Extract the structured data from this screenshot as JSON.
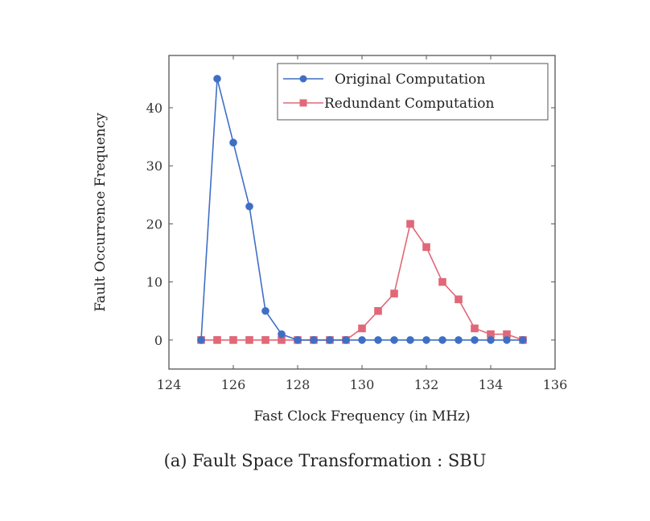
{
  "caption": "(a) Fault Space Transformation : SBU",
  "chart_data": {
    "type": "line",
    "xlabel": "Fast Clock Frequency (in MHz)",
    "ylabel": "Fault Occurrence Frequency",
    "xlim": [
      124,
      136
    ],
    "ylim": [
      -5,
      49
    ],
    "xticks": [
      124,
      126,
      128,
      130,
      132,
      134,
      136
    ],
    "yticks": [
      0,
      10,
      20,
      30,
      40
    ],
    "grid": false,
    "legend": "top-right",
    "series": [
      {
        "name": "Original Computation",
        "color": "#3f6fc4",
        "marker": "circle",
        "x": [
          125,
          125.5,
          126,
          126.5,
          127,
          127.5,
          128,
          128.5,
          129,
          129.5,
          130,
          130.5,
          131,
          131.5,
          132,
          132.5,
          133,
          133.5,
          134,
          134.5,
          135
        ],
        "y": [
          0,
          45,
          34,
          23,
          5,
          1,
          0,
          0,
          0,
          0,
          0,
          0,
          0,
          0,
          0,
          0,
          0,
          0,
          0,
          0,
          0
        ]
      },
      {
        "name": "Redundant Computation",
        "color": "#e06878",
        "marker": "square",
        "x": [
          125,
          125.5,
          126,
          126.5,
          127,
          127.5,
          128,
          128.5,
          129,
          129.5,
          130,
          130.5,
          131,
          131.5,
          132,
          132.5,
          133,
          133.5,
          134,
          134.5,
          135
        ],
        "y": [
          0,
          0,
          0,
          0,
          0,
          0,
          0,
          0,
          0,
          0,
          2,
          5,
          8,
          20,
          16,
          10,
          7,
          2,
          1,
          1,
          0
        ]
      }
    ]
  }
}
